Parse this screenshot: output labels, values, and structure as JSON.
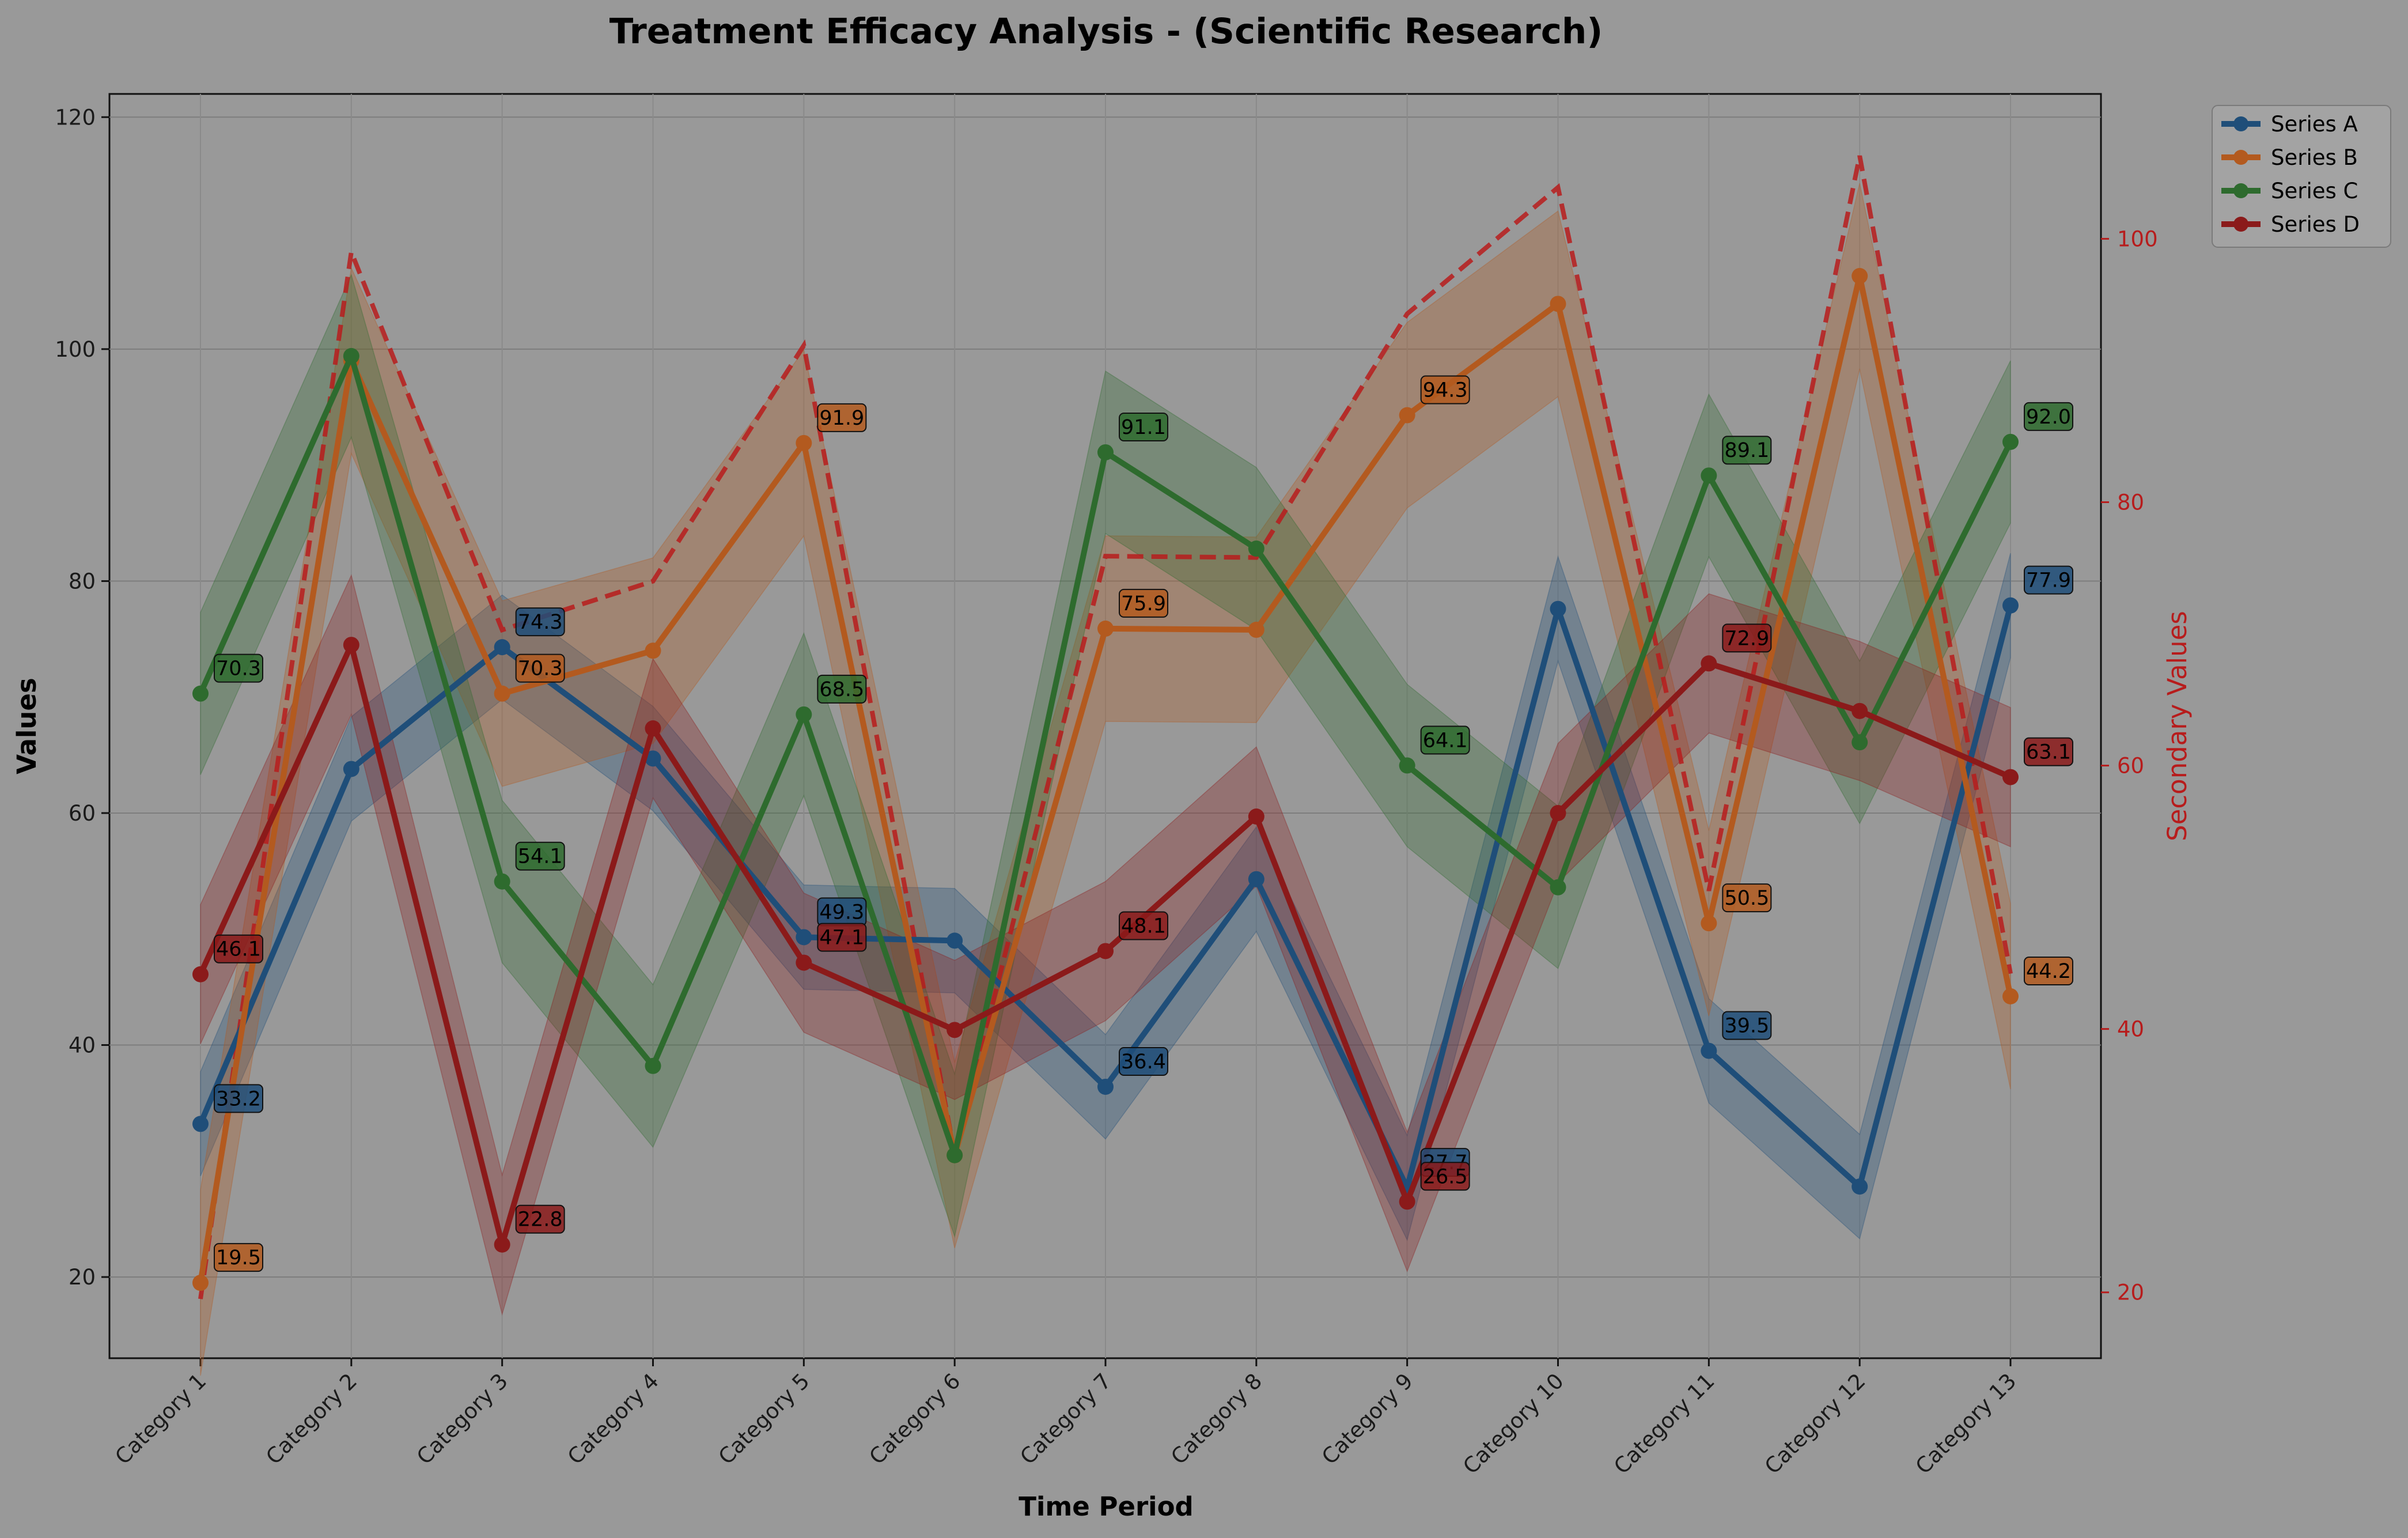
{
  "colors": {
    "background": "#999999",
    "series": [
      "#1f4e79",
      "#b35a1f",
      "#2e6b2e",
      "#8b1a1a"
    ],
    "secondary_axis": "#b71c1c"
  },
  "chart_data": {
    "type": "line",
    "title": "Treatment Efficacy Analysis - (Scientific Research)",
    "xlabel": "Time Period",
    "ylabel": "Values",
    "y2label": "Secondary Values",
    "ylim": [
      13,
      122
    ],
    "y2lim": [
      15,
      111
    ],
    "yticks": [
      20,
      40,
      60,
      80,
      100,
      120
    ],
    "y2ticks": [
      20,
      40,
      60,
      80,
      100
    ],
    "grid": true,
    "legend_position": "outside top-right",
    "categories": [
      "Category 1",
      "Category 2",
      "Category 3",
      "Category 4",
      "Category 5",
      "Category 6",
      "Category 7",
      "Category 8",
      "Category 9",
      "Category 10",
      "Category 11",
      "Category 12",
      "Category 13"
    ],
    "series": [
      {
        "name": "Series A",
        "values": [
          33.2,
          63.8,
          74.3,
          64.7,
          49.3,
          49.0,
          36.4,
          54.3,
          27.7,
          77.6,
          39.5,
          27.8,
          77.9
        ],
        "band": 4.5
      },
      {
        "name": "Series B",
        "values": [
          19.5,
          99.0,
          70.3,
          74.0,
          91.9,
          30.5,
          75.9,
          75.8,
          94.3,
          103.9,
          50.5,
          106.3,
          44.2
        ],
        "band": 8.0
      },
      {
        "name": "Series C",
        "values": [
          70.3,
          99.4,
          54.1,
          38.2,
          68.5,
          30.5,
          91.1,
          82.8,
          64.1,
          53.6,
          89.1,
          66.1,
          92.0
        ],
        "band": 7.0
      },
      {
        "name": "Series D",
        "values": [
          46.1,
          74.5,
          22.8,
          67.3,
          47.1,
          41.3,
          48.1,
          59.7,
          26.5,
          60.0,
          72.9,
          68.8,
          63.1
        ],
        "band": 6.0
      }
    ],
    "labeled_points": [
      {
        "series": 0,
        "index": 0
      },
      {
        "series": 0,
        "index": 2
      },
      {
        "series": 0,
        "index": 4
      },
      {
        "series": 0,
        "index": 6
      },
      {
        "series": 0,
        "index": 8
      },
      {
        "series": 0,
        "index": 10
      },
      {
        "series": 0,
        "index": 12
      },
      {
        "series": 1,
        "index": 0
      },
      {
        "series": 1,
        "index": 2
      },
      {
        "series": 1,
        "index": 4
      },
      {
        "series": 1,
        "index": 6
      },
      {
        "series": 1,
        "index": 8
      },
      {
        "series": 1,
        "index": 10
      },
      {
        "series": 1,
        "index": 12
      },
      {
        "series": 2,
        "index": 0
      },
      {
        "series": 2,
        "index": 2
      },
      {
        "series": 2,
        "index": 4
      },
      {
        "series": 2,
        "index": 6
      },
      {
        "series": 2,
        "index": 8
      },
      {
        "series": 2,
        "index": 10
      },
      {
        "series": 2,
        "index": 12
      },
      {
        "series": 3,
        "index": 0
      },
      {
        "series": 3,
        "index": 2
      },
      {
        "series": 3,
        "index": 4
      },
      {
        "series": 3,
        "index": 6
      },
      {
        "series": 3,
        "index": 8
      },
      {
        "series": 3,
        "index": 10
      },
      {
        "series": 3,
        "index": 12
      }
    ],
    "secondary_series": {
      "style": "dashed",
      "values": [
        19.5,
        99.0,
        70.3,
        74.0,
        91.9,
        30.5,
        75.9,
        75.8,
        94.3,
        103.9,
        50.5,
        106.3,
        44.2
      ]
    }
  }
}
